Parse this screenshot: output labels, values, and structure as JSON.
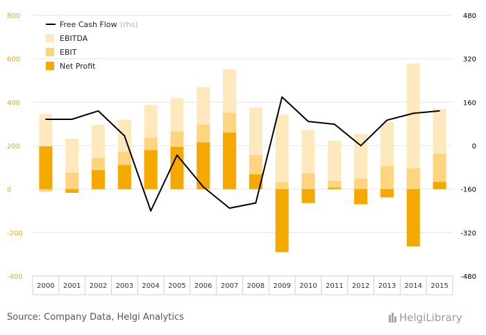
{
  "chart_data": {
    "type": "bar",
    "categories": [
      "2000",
      "2001",
      "2002",
      "2003",
      "2004",
      "2005",
      "2006",
      "2007",
      "2008",
      "2009",
      "2010",
      "2011",
      "2012",
      "2013",
      "2014",
      "2015"
    ],
    "series": [
      {
        "name": "EBITDA",
        "kind": "bar",
        "axis": "left",
        "color": "#fde9bd",
        "values": [
          345,
          232,
          295,
          320,
          387,
          418,
          469,
          551,
          375,
          344,
          272,
          223,
          254,
          310,
          578,
          370
        ]
      },
      {
        "name": "EBIT",
        "kind": "bar",
        "axis": "left",
        "color": "#fdd47f",
        "values": [
          -12,
          76,
          143,
          172,
          237,
          265,
          297,
          351,
          157,
          32,
          73,
          38,
          48,
          105,
          95,
          162
        ]
      },
      {
        "name": "Net Profit",
        "kind": "bar",
        "axis": "left",
        "color": "#f5a800",
        "values": [
          197,
          -17,
          87,
          110,
          179,
          194,
          215,
          260,
          68,
          -290,
          -64,
          7,
          -70,
          -38,
          -263,
          33
        ]
      },
      {
        "name": "Free Cash Flow",
        "kind": "line",
        "axis": "right",
        "color": "#000000",
        "values": [
          97,
          97,
          128,
          36,
          -240,
          -35,
          -152,
          -230,
          -211,
          179,
          89,
          79,
          0,
          94,
          119,
          128
        ]
      }
    ],
    "legend_suffix": "(rhs)",
    "ylim": [
      -400,
      800
    ],
    "yticks": [
      "-400",
      "-200",
      "0",
      "200",
      "400",
      "600",
      "800"
    ],
    "y2lim": [
      -480,
      480
    ],
    "y2ticks": [
      "-480",
      "-320",
      "-160",
      "0",
      "160",
      "320",
      "480"
    ],
    "legend_position": "top-left",
    "grid": true,
    "colors": {
      "left_axis": "#f5a800",
      "right_axis": "#000000",
      "grid": "#e4e4e4"
    }
  },
  "footer": {
    "source": "Source: Company Data, Helgi Analytics",
    "brand": "HelgiLibrary"
  }
}
